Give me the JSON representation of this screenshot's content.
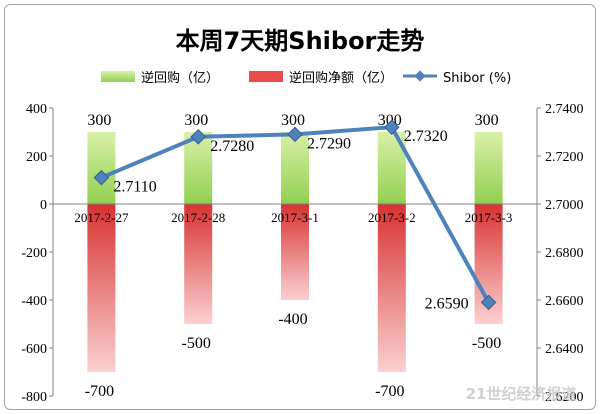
{
  "chart_data": {
    "type": "bar+line",
    "title": "本周7天期Shibor走势",
    "categories": [
      "2017-2-27",
      "2017-2-28",
      "2017-3-1",
      "2017-3-2",
      "2017-3-3"
    ],
    "series": [
      {
        "name": "逆回购（亿）",
        "type": "bar",
        "axis": "left",
        "color": "#92d050",
        "values": [
          300,
          300,
          300,
          300,
          300
        ],
        "labels": [
          "300",
          "300",
          "300",
          "300",
          "300"
        ]
      },
      {
        "name": "逆回购净额（亿）",
        "type": "bar",
        "axis": "left",
        "color": "#e84c4c",
        "values": [
          -700,
          -500,
          -400,
          -700,
          -500
        ],
        "labels": [
          "-700",
          "-500",
          "-400",
          "-700",
          "-500"
        ]
      },
      {
        "name": "Shibor (%)",
        "type": "line",
        "axis": "right",
        "color": "#4f81bd",
        "values": [
          2.711,
          2.728,
          2.729,
          2.732,
          2.659
        ],
        "labels": [
          "2.7110",
          "2.7280",
          "2.7290",
          "2.7320",
          "2.6590"
        ]
      }
    ],
    "left_axis": {
      "min": -800,
      "max": 400,
      "step": 200,
      "tick_labels": [
        "400",
        "200",
        "0",
        "-200",
        "-400",
        "-600",
        "-800"
      ]
    },
    "right_axis": {
      "min": 2.62,
      "max": 2.74,
      "step": 0.02,
      "tick_labels": [
        "2.7400",
        "2.7200",
        "2.7000",
        "2.6800",
        "2.6600",
        "2.6400",
        "2.6200"
      ]
    },
    "grid": false,
    "legend_position": "top"
  },
  "watermark": "21世纪经济报道"
}
